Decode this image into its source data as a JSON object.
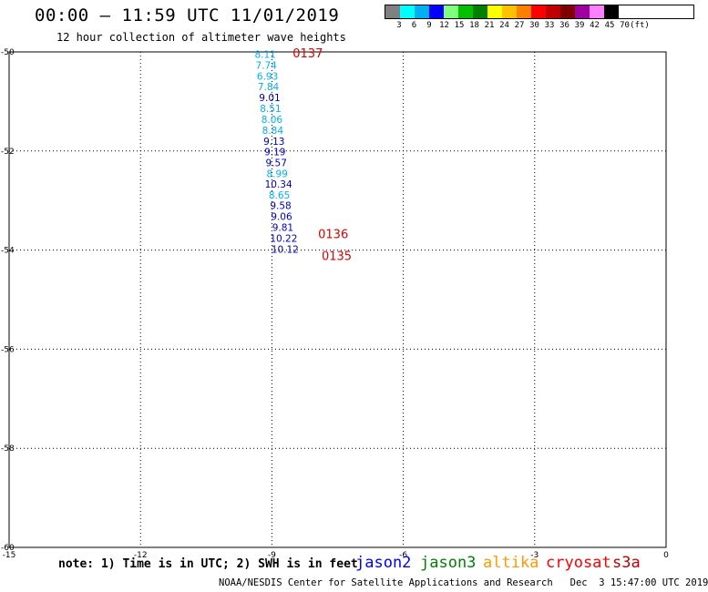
{
  "header": {
    "title": "00:00 – 11:59 UTC 11/01/2019",
    "subtitle": "12 hour collection of altimeter wave heights"
  },
  "colorbar": {
    "colors": [
      "#808080",
      "#00ffff",
      "#00b0f0",
      "#0000ff",
      "#80ff80",
      "#00c000",
      "#008000",
      "#ffff00",
      "#ffc000",
      "#ff8000",
      "#ff0000",
      "#c00000",
      "#800000",
      "#a000a0",
      "#ff80ff",
      "#000000"
    ],
    "labels": [
      "3",
      "6",
      "9",
      "12",
      "15",
      "18",
      "21",
      "24",
      "27",
      "30",
      "33",
      "36",
      "39",
      "42",
      "45",
      "70",
      "(ft)"
    ]
  },
  "map": {
    "x_range": [
      -15,
      0
    ],
    "y_range": [
      -60,
      -50
    ],
    "x_ticks": [
      "-15",
      "-12",
      "-9",
      "-6",
      "-3",
      "0"
    ],
    "y_ticks": [
      "-50",
      "-52",
      "-54",
      "-56",
      "-58",
      "-60"
    ]
  },
  "observations": [
    {
      "lon": -9.15,
      "lat": -50.05,
      "value": "8.11",
      "color": "#00b0f0"
    },
    {
      "lon": -9.13,
      "lat": -50.27,
      "value": "7.74",
      "color": "#00b0f0"
    },
    {
      "lon": -9.1,
      "lat": -50.49,
      "value": "6.93",
      "color": "#00b0f0"
    },
    {
      "lon": -9.08,
      "lat": -50.7,
      "value": "7.84",
      "color": "#00b0f0"
    },
    {
      "lon": -9.05,
      "lat": -50.92,
      "value": "9.01",
      "color": "#0000c0"
    },
    {
      "lon": -9.03,
      "lat": -51.14,
      "value": "8.51",
      "color": "#00b0f0"
    },
    {
      "lon": -9.0,
      "lat": -51.36,
      "value": "8.06",
      "color": "#00b0f0"
    },
    {
      "lon": -8.98,
      "lat": -51.58,
      "value": "8.84",
      "color": "#00b0f0"
    },
    {
      "lon": -8.95,
      "lat": -51.8,
      "value": "9.13",
      "color": "#0000c0"
    },
    {
      "lon": -8.93,
      "lat": -52.01,
      "value": "9.19",
      "color": "#0000c0"
    },
    {
      "lon": -8.9,
      "lat": -52.23,
      "value": "9.57",
      "color": "#0000c0"
    },
    {
      "lon": -8.88,
      "lat": -52.45,
      "value": "8.99",
      "color": "#00b0f0"
    },
    {
      "lon": -8.85,
      "lat": -52.67,
      "value": "10.34",
      "color": "#0000c0"
    },
    {
      "lon": -8.83,
      "lat": -52.89,
      "value": "8.65",
      "color": "#00b0f0"
    },
    {
      "lon": -8.8,
      "lat": -53.1,
      "value": "9.58",
      "color": "#0000c0"
    },
    {
      "lon": -8.78,
      "lat": -53.32,
      "value": "9.06",
      "color": "#0000c0"
    },
    {
      "lon": -8.75,
      "lat": -53.54,
      "value": "9.81",
      "color": "#0000c0"
    },
    {
      "lon": -8.73,
      "lat": -53.76,
      "value": "10.22",
      "color": "#0000c0"
    },
    {
      "lon": -8.7,
      "lat": -53.98,
      "value": "10.12",
      "color": "#0000c0"
    }
  ],
  "pass_times": [
    {
      "lon": -8.18,
      "lat": -50.02,
      "label": "0137"
    },
    {
      "lon": -7.6,
      "lat": -53.67,
      "label": "0136"
    },
    {
      "lon": -7.52,
      "lat": -54.11,
      "label": "0135"
    }
  ],
  "footer": {
    "note": "note: 1) Time is in UTC; 2) SWH is in feet",
    "satellites": [
      {
        "name": "jason2",
        "color": "#0000ff"
      },
      {
        "name": "jason3",
        "color": "#008000"
      },
      {
        "name": "altika",
        "color": "#ff9900"
      },
      {
        "name": "cryosat",
        "color": "#ff0000"
      },
      {
        "name": "s3a",
        "color": "#c00000"
      }
    ],
    "credit": "NOAA/NESDIS Center for Satellite Applications and Research",
    "timestamp": "Dec  3 15:47:00 UTC 2019"
  }
}
